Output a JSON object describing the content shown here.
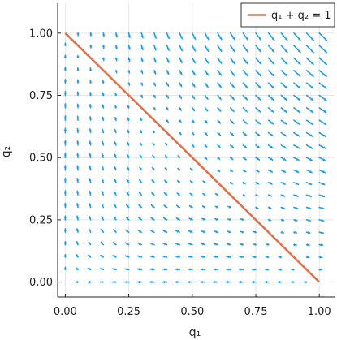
{
  "chart_data": {
    "type": "quiver",
    "xlabel": "q₁",
    "ylabel": "q₂",
    "xlim": [
      -0.03,
      1.06
    ],
    "ylim": [
      -0.06,
      1.12
    ],
    "xticks": [
      0.0,
      0.25,
      0.5,
      0.75,
      1.0
    ],
    "xtick_labels": [
      "0.00",
      "0.25",
      "0.50",
      "0.75",
      "1.00"
    ],
    "yticks": [
      0.0,
      0.25,
      0.5,
      0.75,
      1.0
    ],
    "ytick_labels": [
      "0.00",
      "0.25",
      "0.50",
      "0.75",
      "1.00"
    ],
    "grid": true,
    "legend_position": "top-right",
    "quiver": {
      "color": "#1f9ee8",
      "grid_x": [
        0.0,
        1.0,
        21
      ],
      "grid_y": [
        0.0,
        1.0,
        21
      ],
      "field": "u = q1*(q1+q2-1), v = q2*(1-q1-q2)"
    },
    "series": [
      {
        "name": "q₁ + q₂ = 1",
        "color": "#e26f46",
        "x": [
          0.0,
          1.0
        ],
        "y": [
          1.0,
          0.0
        ]
      }
    ]
  }
}
